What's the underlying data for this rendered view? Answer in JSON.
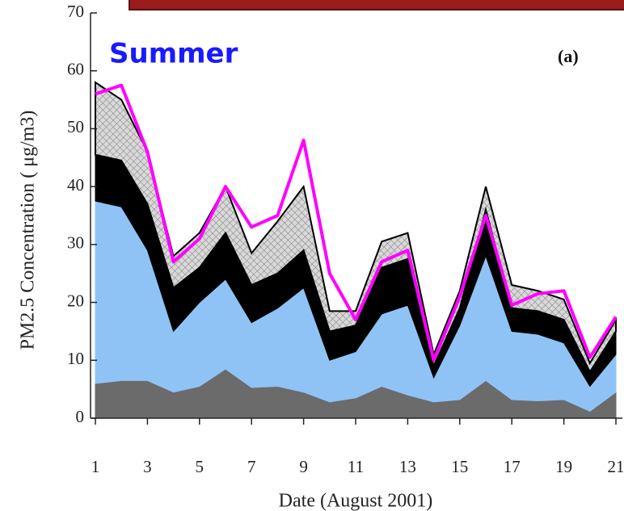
{
  "chart_data": {
    "type": "stacked-area",
    "annotations": [
      "Summer",
      "(a)"
    ],
    "y_label": "PM2.5 Concentration ( μg/m3)",
    "x_label": "Date (August 2001)",
    "x": [
      1,
      2,
      3,
      4,
      5,
      6,
      7,
      8,
      9,
      10,
      11,
      12,
      13,
      14,
      15,
      16,
      17,
      18,
      19,
      20,
      21
    ],
    "stacked": true,
    "series": [
      {
        "color": "#6b6b6b",
        "values": [
          6,
          6.5,
          6.5,
          4.5,
          5.5,
          8.5,
          5.3,
          5.5,
          4.5,
          2.8,
          3.5,
          5.5,
          4,
          2.8,
          3.2,
          6.5,
          3.2,
          3,
          3.2,
          1.2,
          4.5
        ]
      },
      {
        "color": "#8fc3f5",
        "values": [
          31.5,
          30,
          22.5,
          10.5,
          14.5,
          15.5,
          11.2,
          13.5,
          18,
          7.2,
          8,
          12.5,
          15.5,
          4.2,
          12.8,
          21.5,
          11.8,
          11.5,
          9.8,
          4.3,
          6.5
        ]
      },
      {
        "color": "#000000",
        "values": [
          8,
          8,
          8,
          7.5,
          6,
          8,
          6.5,
          6,
          6.5,
          5,
          4.5,
          8,
          8,
          2,
          3,
          8,
          4,
          4,
          4,
          2.5,
          4
        ]
      },
      {
        "color": "#d9d9d9",
        "hatched": true,
        "values": [
          12.5,
          10.5,
          9,
          5.5,
          6,
          8,
          5.5,
          9,
          11,
          3.5,
          2.5,
          4.5,
          4.5,
          2,
          3,
          4,
          4,
          3.5,
          3.5,
          1.5,
          2
        ]
      }
    ],
    "line": {
      "color": "#ff00ff",
      "values": [
        56,
        57.5,
        46,
        27,
        31,
        40,
        33,
        35,
        48,
        25,
        17,
        27,
        29,
        10,
        21,
        35,
        19.5,
        21.5,
        22,
        10.5,
        17.5
      ]
    },
    "xlim": [
      1,
      21
    ],
    "xticks": [
      1,
      3,
      5,
      7,
      9,
      11,
      13,
      15,
      17,
      19,
      21
    ],
    "ylim": [
      0,
      70
    ],
    "yticks": [
      0,
      10,
      20,
      30,
      40,
      50,
      60,
      70
    ]
  }
}
